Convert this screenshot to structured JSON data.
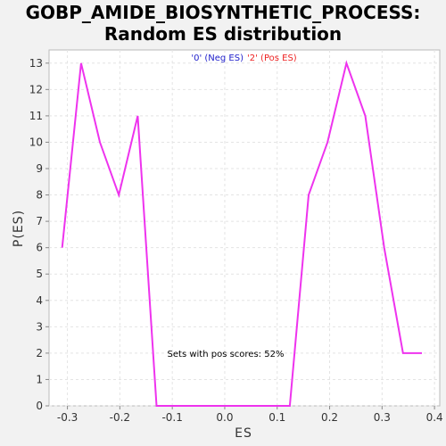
{
  "chart_data": {
    "type": "line",
    "title_line1": "GOBP_AMIDE_BIOSYNTHETIC_PROCESS:",
    "title_line2": "Random ES distribution",
    "xlabel": "ES",
    "ylabel": "P(ES)",
    "xlim": [
      -0.335,
      0.41
    ],
    "ylim": [
      0,
      13.5
    ],
    "xticks": [
      -0.3,
      -0.2,
      -0.1,
      0.0,
      0.1,
      0.2,
      0.3,
      0.4
    ],
    "xtick_labels": [
      "-0.3",
      "-0.2",
      "-0.1",
      "0.0",
      "0.1",
      "0.2",
      "0.3",
      "0.4"
    ],
    "yticks": [
      0,
      1,
      2,
      3,
      4,
      5,
      6,
      7,
      8,
      9,
      10,
      11,
      12,
      13
    ],
    "ytick_labels": [
      "0",
      "1",
      "2",
      "3",
      "4",
      "5",
      "6",
      "7",
      "8",
      "9",
      "10",
      "11",
      "12",
      "13"
    ],
    "grid": true,
    "legend": [
      {
        "label": "'0' (Neg ES)",
        "color": "#2222cc"
      },
      {
        "label": "'2' (Pos ES)",
        "color": "#ee2222"
      }
    ],
    "annotation": "Sets with pos scores: 52%",
    "series": [
      {
        "color": "#ee33ee",
        "x": [
          -0.31,
          -0.274,
          -0.238,
          -0.202,
          -0.166,
          -0.13,
          -0.094,
          0.124,
          0.16,
          0.196,
          0.232,
          0.268,
          0.304,
          0.34,
          0.376
        ],
        "y": [
          6,
          13,
          10,
          8,
          11,
          0,
          0,
          0,
          8,
          10,
          13,
          11,
          6,
          2,
          2
        ]
      }
    ]
  }
}
